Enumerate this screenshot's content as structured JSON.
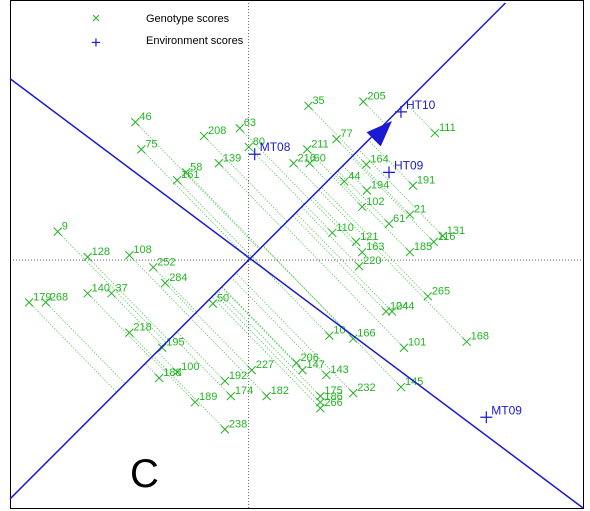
{
  "panel_letter": "C",
  "colors": {
    "genotype": "#22b422",
    "environment": "#1a1ad2",
    "axis_line": "#1a1ad2",
    "frame": "#000000",
    "guide": "#000000"
  },
  "chart_data": {
    "type": "scatter",
    "title": "",
    "xlabel": "",
    "ylabel": "",
    "xlim": [
      -4.0,
      5.6
    ],
    "ylim": [
      -4.1,
      4.3
    ],
    "grid": false,
    "legend_position": "top-left",
    "legend": [
      {
        "marker": "×",
        "label": "Genotype scores",
        "series": "genotype"
      },
      {
        "marker": "+",
        "label": "Environment scores",
        "series": "environment"
      }
    ],
    "environment_points": [
      {
        "label": "HT10",
        "x": 2.55,
        "y": 2.45
      },
      {
        "label": "MT08",
        "x": 0.1,
        "y": 1.75
      },
      {
        "label": "HT09",
        "x": 2.35,
        "y": 1.45
      },
      {
        "label": "MT09",
        "x": 3.98,
        "y": -2.6
      }
    ],
    "axis_lines": [
      {
        "name": "average-environment-axis",
        "from": [
          -4.0,
          -3.95
        ],
        "to": [
          4.3,
          4.25
        ],
        "arrow_at": [
          2.4,
          2.3
        ]
      },
      {
        "name": "perpendicular-axis",
        "from": [
          -4.0,
          3.0
        ],
        "to": [
          5.6,
          -4.1
        ]
      }
    ],
    "genotype_points": [
      {
        "label": "9",
        "x": -3.2,
        "y": 0.47
      },
      {
        "label": "46",
        "x": -1.9,
        "y": 2.28
      },
      {
        "label": "75",
        "x": -1.8,
        "y": 1.83
      },
      {
        "label": "208",
        "x": -0.75,
        "y": 2.05
      },
      {
        "label": "63",
        "x": -0.15,
        "y": 2.18
      },
      {
        "label": "80",
        "x": 0.0,
        "y": 1.87
      },
      {
        "label": "35",
        "x": 1.0,
        "y": 2.55
      },
      {
        "label": "205",
        "x": 1.92,
        "y": 2.62
      },
      {
        "label": "111",
        "x": 3.12,
        "y": 2.1
      },
      {
        "label": "77",
        "x": 1.47,
        "y": 2.0
      },
      {
        "label": "211",
        "x": 0.98,
        "y": 1.83
      },
      {
        "label": "216",
        "x": 0.75,
        "y": 1.6
      },
      {
        "label": "60",
        "x": 1.02,
        "y": 1.6
      },
      {
        "label": "164",
        "x": 1.97,
        "y": 1.58
      },
      {
        "label": "139",
        "x": -0.5,
        "y": 1.6
      },
      {
        "label": "58",
        "x": -1.05,
        "y": 1.45
      },
      {
        "label": "161",
        "x": -1.2,
        "y": 1.32
      },
      {
        "label": "191",
        "x": 2.75,
        "y": 1.23
      },
      {
        "label": "194",
        "x": 1.98,
        "y": 1.15
      },
      {
        "label": "44",
        "x": 1.6,
        "y": 1.3
      },
      {
        "label": "102",
        "x": 1.9,
        "y": 0.88
      },
      {
        "label": "21",
        "x": 2.7,
        "y": 0.75
      },
      {
        "label": "61",
        "x": 2.35,
        "y": 0.6
      },
      {
        "label": "110",
        "x": 1.4,
        "y": 0.45
      },
      {
        "label": "121",
        "x": 1.8,
        "y": 0.3
      },
      {
        "label": "131",
        "x": 3.25,
        "y": 0.4
      },
      {
        "label": "116",
        "x": 3.1,
        "y": 0.3
      },
      {
        "label": "185",
        "x": 2.7,
        "y": 0.13
      },
      {
        "label": "163",
        "x": 1.9,
        "y": 0.13
      },
      {
        "label": "128",
        "x": -2.7,
        "y": 0.05
      },
      {
        "label": "108",
        "x": -2.0,
        "y": 0.08
      },
      {
        "label": "252",
        "x": -1.6,
        "y": -0.12
      },
      {
        "label": "220",
        "x": 1.85,
        "y": -0.1
      },
      {
        "label": "265",
        "x": 3.0,
        "y": -0.6
      },
      {
        "label": "179",
        "x": -3.68,
        "y": -0.7
      },
      {
        "label": "268",
        "x": -3.4,
        "y": -0.7
      },
      {
        "label": "140",
        "x": -2.7,
        "y": -0.55
      },
      {
        "label": "37",
        "x": -2.3,
        "y": -0.55
      },
      {
        "label": "284",
        "x": -1.4,
        "y": -0.38
      },
      {
        "label": "50",
        "x": -0.6,
        "y": -0.72
      },
      {
        "label": "218",
        "x": -2.0,
        "y": -1.2
      },
      {
        "label": "104",
        "x": 2.3,
        "y": -0.85
      },
      {
        "label": "244",
        "x": 2.4,
        "y": -0.85
      },
      {
        "label": "168",
        "x": 3.65,
        "y": -1.35
      },
      {
        "label": "101",
        "x": 2.6,
        "y": -1.45
      },
      {
        "label": "166",
        "x": 1.75,
        "y": -1.3
      },
      {
        "label": "145",
        "x": 2.55,
        "y": -2.1
      },
      {
        "label": "143",
        "x": 1.3,
        "y": -1.9
      },
      {
        "label": "232",
        "x": 1.75,
        "y": -2.2
      },
      {
        "label": "147",
        "x": 0.9,
        "y": -1.82
      },
      {
        "label": "175",
        "x": 1.2,
        "y": -2.25
      },
      {
        "label": "186",
        "x": 1.2,
        "y": -2.35
      },
      {
        "label": "266",
        "x": 1.2,
        "y": -2.45
      },
      {
        "label": "182",
        "x": 0.3,
        "y": -2.25
      },
      {
        "label": "174",
        "x": -0.3,
        "y": -2.25
      },
      {
        "label": "189",
        "x": -0.9,
        "y": -2.35
      },
      {
        "label": "192",
        "x": -0.4,
        "y": -2.0
      },
      {
        "label": "238",
        "x": -0.4,
        "y": -2.8
      },
      {
        "label": "100",
        "x": -1.2,
        "y": -1.85
      },
      {
        "label": "188",
        "x": -1.5,
        "y": -1.95
      },
      {
        "label": "195",
        "x": -1.45,
        "y": -1.45
      },
      {
        "label": "227",
        "x": 0.05,
        "y": -1.82
      },
      {
        "label": "206",
        "x": 0.8,
        "y": -1.7
      },
      {
        "label": "10",
        "x": 1.35,
        "y": -1.25
      }
    ]
  }
}
